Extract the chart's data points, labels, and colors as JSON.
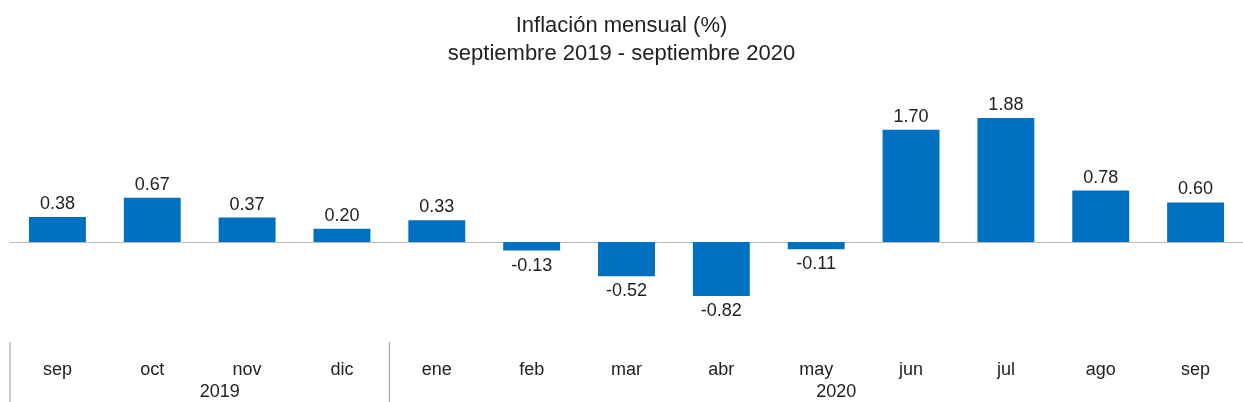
{
  "chart_data": {
    "type": "bar",
    "title": "Inflación mensual (%)",
    "subtitle": "septiembre 2019 - septiembre 2020",
    "categories": [
      "sep",
      "oct",
      "nov",
      "dic",
      "ene",
      "feb",
      "mar",
      "abr",
      "may",
      "jun",
      "jul",
      "ago",
      "sep"
    ],
    "values": [
      0.38,
      0.67,
      0.37,
      0.2,
      0.33,
      -0.13,
      -0.52,
      -0.82,
      -0.11,
      1.7,
      1.88,
      0.78,
      0.6
    ],
    "value_labels": [
      "0.38",
      "0.67",
      "0.37",
      "0.20",
      "0.33",
      "-0.13",
      "-0.52",
      "-0.82",
      "-0.11",
      "1.70",
      "1.88",
      "0.78",
      "0.60"
    ],
    "color": "#0070c0",
    "annotations": [
      "2019",
      "2020"
    ]
  }
}
